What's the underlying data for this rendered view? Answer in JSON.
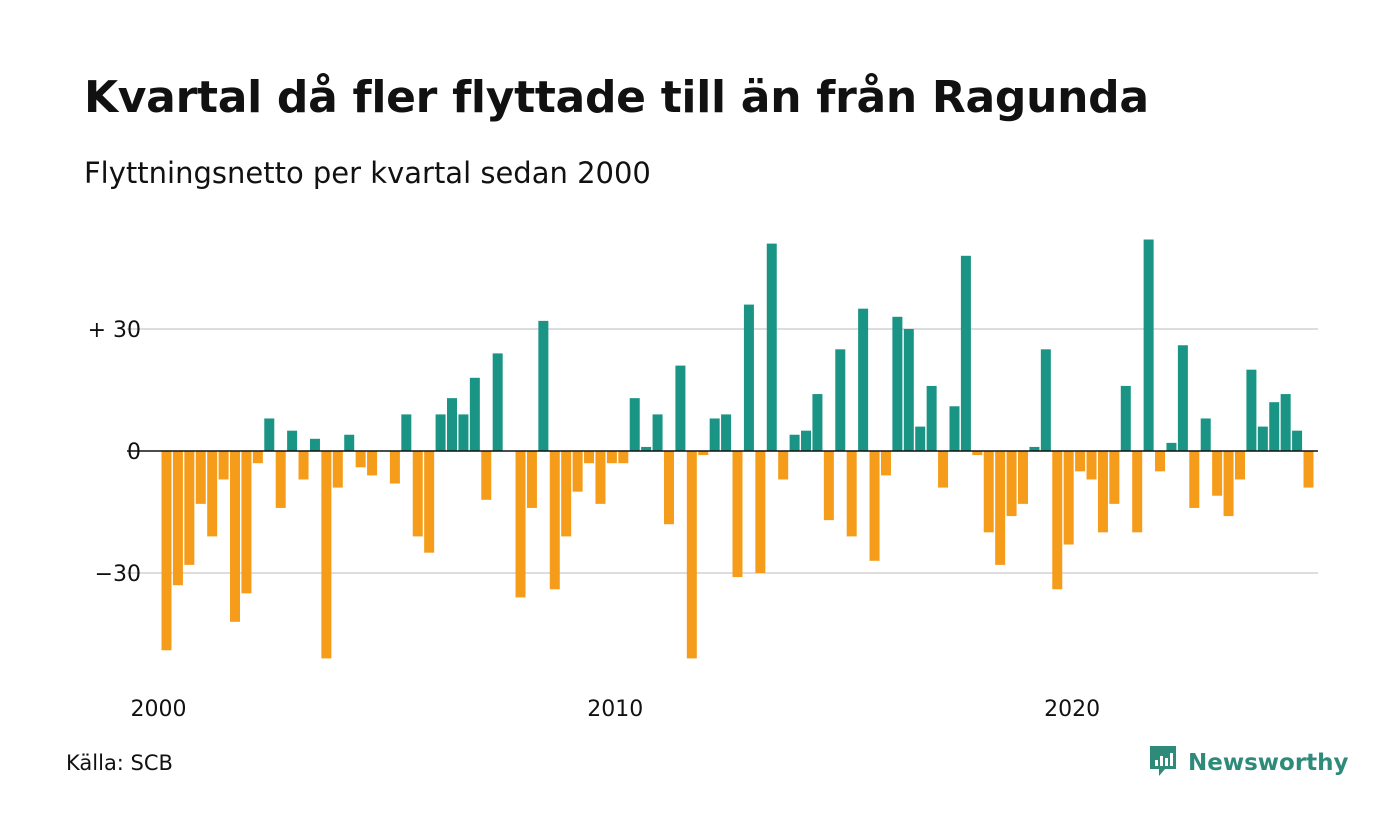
{
  "header": {
    "title": "Kvartal då fler flyttade till än från Ragunda",
    "subtitle": "Flyttningsnetto per kvartal sedan 2000"
  },
  "footer": {
    "source": "Källa: SCB",
    "brand": "Newsworthy",
    "brand_icon": "chart-bubble-icon"
  },
  "colors": {
    "positive": "#1a9484",
    "negative": "#f59c1a",
    "grid": "#dddddd",
    "brand": "#2e8b7a"
  },
  "chart_data": {
    "type": "bar",
    "start_year": 2000,
    "frequency": "quarterly",
    "ylim": [
      -52,
      52
    ],
    "grid": true,
    "y_ticks": [
      30,
      0,
      -30
    ],
    "y_tick_labels": [
      "+ 30",
      "0",
      "−30"
    ],
    "x_ticks": [
      2000,
      2010,
      2020
    ],
    "x_tick_labels": [
      "2000",
      "2010",
      "2020"
    ],
    "values": [
      -49,
      -33,
      -28,
      -13,
      -21,
      -7,
      -42,
      -35,
      -3,
      8,
      -14,
      5,
      -7,
      3,
      -51,
      -9,
      4,
      -4,
      -6,
      0,
      -8,
      9,
      -21,
      -25,
      9,
      13,
      9,
      18,
      -12,
      24,
      0,
      -36,
      -14,
      32,
      -34,
      -21,
      -10,
      -3,
      -13,
      -3,
      -3,
      13,
      1,
      9,
      -18,
      21,
      -51,
      -1,
      8,
      9,
      -31,
      36,
      -30,
      51,
      -7,
      4,
      5,
      14,
      -17,
      25,
      -21,
      35,
      -27,
      -6,
      33,
      30,
      6,
      16,
      -9,
      11,
      48,
      -1,
      -20,
      -28,
      -16,
      -13,
      1,
      25,
      -34,
      -23,
      -5,
      -7,
      -20,
      -13,
      16,
      -20,
      52,
      -5,
      2,
      26,
      -14,
      8,
      -11,
      -16,
      -7,
      20,
      6,
      12,
      14,
      5,
      -9
    ]
  }
}
